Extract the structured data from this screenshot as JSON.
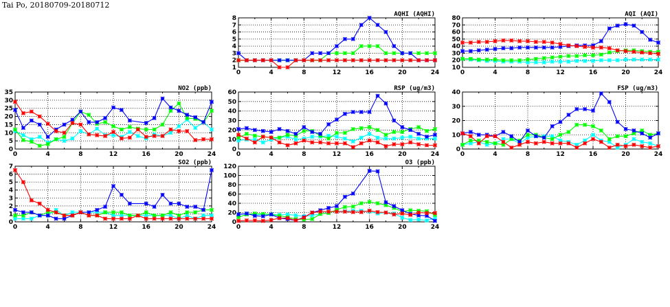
{
  "title": "Tai Po, 20180709-20180712",
  "series_colors": {
    "blue": "#0000ff",
    "green": "#00ff00",
    "cyan": "#00ffff",
    "red": "#ff0000"
  },
  "chart_data": [
    {
      "type": "line",
      "title": "AQHI (AQHI)",
      "xlabel": "",
      "ylabel": "",
      "xlim": [
        0,
        24
      ],
      "ylim": [
        1,
        8
      ],
      "ystep": 1,
      "xticks": [
        0,
        4,
        8,
        12,
        16,
        20,
        24
      ],
      "grid": true,
      "x": [
        0,
        1,
        2,
        3,
        4,
        5,
        6,
        7,
        8,
        9,
        10,
        11,
        12,
        13,
        14,
        15,
        16,
        17,
        18,
        19,
        20,
        21,
        22,
        23,
        24
      ],
      "series": [
        {
          "color": "cyan",
          "values": [
            2,
            2,
            2,
            2,
            2,
            2,
            2,
            2,
            2,
            2,
            2,
            2,
            2,
            2,
            2,
            2,
            2,
            2,
            2,
            2,
            2,
            2,
            2,
            2,
            2
          ]
        },
        {
          "color": "green",
          "values": [
            2,
            2,
            2,
            2,
            2,
            2,
            2,
            2,
            2,
            2,
            2,
            3,
            3,
            3,
            3,
            4,
            4,
            4,
            3,
            3,
            3,
            3,
            3,
            3,
            3
          ]
        },
        {
          "color": "blue",
          "values": [
            3,
            2,
            2,
            2,
            2,
            2,
            2,
            2,
            2,
            3,
            3,
            3,
            4,
            5,
            5,
            7,
            8,
            7,
            6,
            4,
            3,
            3,
            2,
            2,
            2
          ]
        },
        {
          "color": "red",
          "values": [
            2,
            2,
            2,
            2,
            2,
            1,
            1,
            2,
            2,
            2,
            2,
            2,
            2,
            2,
            2,
            2,
            2,
            2,
            2,
            2,
            2,
            2,
            2,
            2,
            2
          ]
        }
      ]
    },
    {
      "type": "line",
      "title": "AQI (AQI)",
      "xlabel": "",
      "ylabel": "",
      "xlim": [
        0,
        24
      ],
      "ylim": [
        10,
        80
      ],
      "ystep": 10,
      "xticks": [
        0,
        4,
        8,
        12,
        16,
        20,
        24
      ],
      "grid": true,
      "x": [
        0,
        1,
        2,
        3,
        4,
        5,
        6,
        7,
        8,
        9,
        10,
        11,
        12,
        13,
        14,
        15,
        16,
        17,
        18,
        19,
        20,
        21,
        22,
        23,
        24
      ],
      "series": [
        {
          "color": "cyan",
          "values": [
            22,
            21,
            20,
            19,
            19,
            18,
            18,
            18,
            17,
            17,
            17,
            18,
            18,
            18,
            19,
            19,
            19,
            20,
            20,
            20,
            21,
            21,
            21,
            21,
            21
          ]
        },
        {
          "color": "green",
          "values": [
            22,
            22,
            21,
            21,
            21,
            20,
            20,
            20,
            21,
            22,
            23,
            24,
            25,
            26,
            26,
            27,
            27,
            28,
            31,
            33,
            34,
            34,
            33,
            32,
            32
          ]
        },
        {
          "color": "blue",
          "values": [
            33,
            33,
            34,
            35,
            36,
            37,
            37,
            38,
            38,
            38,
            38,
            38,
            39,
            40,
            41,
            41,
            41,
            47,
            65,
            69,
            71,
            69,
            60,
            49,
            45
          ]
        },
        {
          "color": "red",
          "values": [
            45,
            45,
            46,
            46,
            47,
            48,
            48,
            47,
            47,
            46,
            46,
            45,
            43,
            41,
            40,
            39,
            38,
            38,
            37,
            34,
            33,
            32,
            31,
            30,
            29
          ]
        }
      ]
    },
    {
      "type": "line",
      "title": "NO2 (ppb)",
      "xlabel": "",
      "ylabel": "",
      "xlim": [
        0,
        24
      ],
      "ylim": [
        0,
        35
      ],
      "ystep": 5,
      "xticks": [
        0,
        4,
        8,
        12,
        16,
        20,
        24
      ],
      "grid": true,
      "x": [
        0,
        1,
        2,
        3,
        4,
        5,
        6,
        7,
        8,
        9,
        10,
        11,
        12,
        13,
        14,
        15,
        16,
        17,
        18,
        19,
        20,
        21,
        22,
        23,
        24
      ],
      "series": [
        {
          "color": "cyan",
          "values": [
            11,
            8.5,
            6,
            7.5,
            4,
            6,
            5,
            6.5,
            11,
            9,
            12.5,
            8.5,
            8.5,
            7.5,
            10.5,
            8,
            6.5,
            9,
            8,
            10,
            14,
            18,
            13,
            16.5,
            12
          ]
        },
        {
          "color": "green",
          "values": [
            12,
            5.5,
            4.5,
            2,
            3,
            6,
            7.5,
            16,
            23,
            21,
            15.5,
            16.5,
            14,
            12,
            13.5,
            12.5,
            12,
            12,
            15,
            23.5,
            28,
            19,
            18.5,
            16.5,
            23.5
          ]
        },
        {
          "color": "blue",
          "values": [
            24,
            13,
            17.5,
            15,
            7.5,
            12,
            15,
            18,
            23,
            16.5,
            16.5,
            19,
            25.5,
            24,
            17.5,
            null,
            16,
            19,
            31,
            25.5,
            23.5,
            21,
            19.5,
            16.5,
            29
          ]
        },
        {
          "color": "red",
          "values": [
            29,
            22,
            23,
            20,
            15.5,
            11,
            10,
            16,
            15,
            9,
            8.5,
            8,
            10.5,
            6.5,
            7,
            12,
            7.5,
            8,
            8,
            12,
            11,
            11,
            5.5,
            6,
            6
          ]
        }
      ]
    },
    {
      "type": "line",
      "title": "RSP (ug/m3)",
      "xlabel": "",
      "ylabel": "",
      "xlim": [
        0,
        24
      ],
      "ylim": [
        0,
        60
      ],
      "ystep": 10,
      "xticks": [
        0,
        4,
        8,
        12,
        16,
        20,
        24
      ],
      "grid": true,
      "x": [
        0,
        1,
        2,
        3,
        4,
        5,
        6,
        7,
        8,
        9,
        10,
        11,
        12,
        13,
        14,
        15,
        16,
        17,
        18,
        19,
        20,
        21,
        22,
        23,
        24
      ],
      "series": [
        {
          "color": "cyan",
          "values": [
            9,
            10,
            10,
            7,
            10,
            12,
            13,
            10,
            11,
            13,
            13,
            14,
            13,
            11,
            8,
            12,
            16,
            12,
            11,
            11,
            12,
            13,
            11,
            11,
            11
          ]
        },
        {
          "color": "green",
          "values": [
            12,
            16,
            14,
            13,
            12,
            12,
            15,
            14,
            19,
            19,
            14,
            11,
            17,
            17,
            21,
            22,
            23,
            20,
            15,
            18,
            18,
            21,
            23,
            19,
            21
          ]
        },
        {
          "color": "blue",
          "values": [
            21,
            22,
            20,
            19,
            18,
            21,
            19,
            16,
            23,
            18,
            16,
            26,
            31,
            37,
            39,
            39,
            39,
            56,
            48,
            30,
            23,
            20,
            16,
            13,
            15
          ]
        },
        {
          "color": "red",
          "values": [
            15,
            11,
            7,
            13,
            12,
            7,
            4,
            6,
            9,
            7,
            7,
            6,
            6,
            6,
            2,
            6,
            9,
            7,
            3,
            5,
            5,
            7,
            5,
            4,
            4
          ]
        }
      ]
    },
    {
      "type": "line",
      "title": "FSP (ug/m3)",
      "xlabel": "",
      "ylabel": "",
      "xlim": [
        0,
        24
      ],
      "ylim": [
        0,
        40
      ],
      "ystep": 10,
      "xticks": [
        0,
        4,
        8,
        12,
        16,
        20,
        24
      ],
      "grid": true,
      "x": [
        0,
        1,
        2,
        3,
        4,
        5,
        6,
        7,
        8,
        9,
        10,
        11,
        12,
        13,
        14,
        15,
        16,
        17,
        18,
        19,
        20,
        21,
        22,
        23,
        24
      ],
      "series": [
        {
          "color": "cyan",
          "values": [
            3,
            4,
            5,
            3,
            4,
            7,
            7,
            4,
            8,
            9,
            9,
            9,
            6,
            5,
            3,
            6,
            10,
            6,
            5,
            1,
            3,
            7,
            5,
            4,
            2
          ]
        },
        {
          "color": "green",
          "values": [
            3,
            6,
            6,
            5,
            4,
            3,
            7,
            6,
            10,
            10,
            8,
            7,
            10,
            12,
            17,
            17,
            16,
            13,
            7,
            9,
            9,
            11,
            13,
            10,
            11
          ]
        },
        {
          "color": "blue",
          "values": [
            11,
            12,
            10,
            10,
            9,
            12,
            9,
            5,
            13,
            9,
            8,
            16,
            19,
            24,
            28,
            28,
            27,
            39,
            33,
            19,
            14,
            13,
            11,
            8,
            11
          ]
        },
        {
          "color": "red",
          "values": [
            11,
            9,
            4,
            9,
            9,
            5,
            1,
            3,
            5,
            4,
            5,
            4,
            4,
            4,
            1,
            4,
            7,
            5,
            1,
            3,
            2,
            3,
            2,
            1,
            2
          ]
        }
      ]
    },
    {
      "type": "line",
      "title": "SO2 (ppb)",
      "xlabel": "",
      "ylabel": "",
      "xlim": [
        0,
        24
      ],
      "ylim": [
        0,
        7
      ],
      "ystep": 1,
      "xticks": [
        0,
        4,
        8,
        12,
        16,
        20,
        24
      ],
      "grid": true,
      "x": [
        0,
        1,
        2,
        3,
        4,
        5,
        6,
        7,
        8,
        9,
        10,
        11,
        12,
        13,
        14,
        15,
        16,
        17,
        18,
        19,
        20,
        21,
        22,
        23,
        24
      ],
      "series": [
        {
          "color": "cyan",
          "values": [
            0.4,
            0.4,
            0.4,
            0.8,
            0.8,
            1.5,
            0.8,
            1.2,
            1.2,
            1.2,
            1.2,
            1.2,
            0.8,
            0.8,
            0.8,
            0.8,
            0.8,
            0.8,
            0.8,
            0.8,
            0.4,
            0.8,
            0.4,
            0.8,
            0.8
          ]
        },
        {
          "color": "green",
          "values": [
            0.8,
            0.8,
            1.2,
            0.8,
            1.2,
            1.2,
            0.8,
            0.8,
            1.2,
            0.8,
            0.8,
            1.2,
            1.2,
            1.2,
            0.8,
            0.8,
            1.2,
            0.8,
            0.8,
            1.2,
            0.8,
            1.2,
            1.2,
            1.5,
            1.5
          ]
        },
        {
          "color": "blue",
          "values": [
            1.5,
            1.2,
            1.2,
            0.8,
            0.8,
            0.4,
            0.4,
            0.8,
            1.2,
            1.2,
            1.5,
            1.9,
            4.5,
            3.4,
            2.3,
            null,
            2.3,
            1.9,
            3.4,
            2.3,
            2.3,
            1.9,
            1.9,
            1.5,
            6.5
          ]
        },
        {
          "color": "red",
          "values": [
            6.5,
            5,
            2.7,
            2.3,
            1.5,
            1.2,
            0.8,
            0.8,
            1.2,
            0.8,
            0.8,
            0.4,
            0.4,
            0.4,
            0.4,
            0.8,
            0.4,
            0.4,
            0.4,
            0.4,
            0.4,
            0.4,
            0.4,
            0.4,
            0.4
          ]
        }
      ]
    },
    {
      "type": "line",
      "title": "O3 (ppb)",
      "xlabel": "",
      "ylabel": "",
      "xlim": [
        0,
        24
      ],
      "ylim": [
        0,
        120
      ],
      "ystep": 20,
      "xticks": [
        0,
        4,
        8,
        12,
        16,
        20,
        24
      ],
      "grid": true,
      "x": [
        0,
        1,
        2,
        3,
        4,
        5,
        6,
        7,
        8,
        9,
        10,
        11,
        12,
        13,
        14,
        15,
        16,
        17,
        18,
        19,
        20,
        21,
        22,
        23,
        24
      ],
      "series": [
        {
          "color": "cyan",
          "values": [
            16,
            17,
            15,
            16,
            16,
            15,
            16,
            14,
            12,
            14,
            17,
            20,
            23,
            23,
            24,
            24,
            22,
            18,
            20,
            18,
            9,
            4,
            5,
            3,
            8
          ]
        },
        {
          "color": "green",
          "values": [
            10,
            16,
            18,
            17,
            16,
            13,
            10,
            6,
            5,
            6,
            17,
            19,
            26,
            32,
            33,
            40,
            43,
            40,
            36,
            30,
            22,
            25,
            24,
            23,
            15
          ]
        },
        {
          "color": "blue",
          "values": [
            16,
            18,
            13,
            12,
            16,
            8,
            6,
            3,
            10,
            20,
            25,
            30,
            34,
            54,
            61,
            null,
            110,
            109,
            42,
            34,
            25,
            17,
            14,
            13,
            2
          ]
        },
        {
          "color": "red",
          "values": [
            2,
            3,
            3,
            2,
            4,
            8,
            8,
            3,
            9,
            20,
            22,
            22,
            22,
            22,
            21,
            21,
            24,
            21,
            20,
            16,
            18,
            15,
            20,
            19,
            19
          ]
        }
      ]
    }
  ]
}
